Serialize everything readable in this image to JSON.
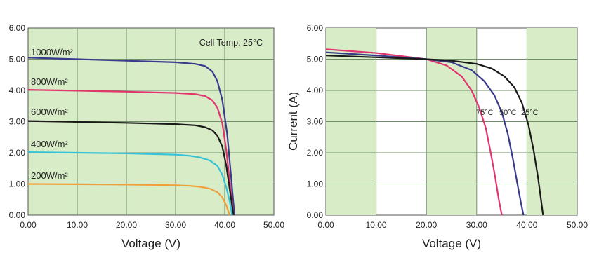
{
  "chart_data": [
    {
      "type": "line",
      "title": "",
      "xlabel": "Voltage (V)",
      "ylabel": "",
      "xlim": [
        0,
        50
      ],
      "ylim": [
        0,
        6
      ],
      "x_ticks": [
        "0.00",
        "10.00",
        "20.00",
        "30.00",
        "40.00",
        "50.00"
      ],
      "y_ticks": [
        "0.00",
        "1.00",
        "2.00",
        "3.00",
        "4.00",
        "5.00",
        "6.00"
      ],
      "annotation": "Cell Temp. 25°C",
      "grid": true,
      "series": [
        {
          "name": "1000W/m²",
          "color": "#3a3a8c",
          "x": [
            0,
            10,
            20,
            30,
            34,
            36,
            37.5,
            38.5,
            39.5,
            40.5,
            41.2,
            41.7,
            42
          ],
          "y": [
            5.05,
            5.0,
            4.95,
            4.9,
            4.85,
            4.78,
            4.6,
            4.3,
            3.7,
            2.6,
            1.4,
            0.5,
            0
          ]
        },
        {
          "name": "800W/m²",
          "color": "#e0356e",
          "x": [
            0,
            10,
            20,
            30,
            34,
            36,
            37.5,
            38.5,
            39.5,
            40.3,
            41.0,
            41.5,
            41.8
          ],
          "y": [
            4.02,
            3.99,
            3.96,
            3.92,
            3.88,
            3.82,
            3.68,
            3.45,
            2.95,
            2.1,
            1.1,
            0.4,
            0
          ]
        },
        {
          "name": "600W/m²",
          "color": "#1a1a1a",
          "x": [
            0,
            10,
            20,
            30,
            34,
            36,
            37.5,
            38.5,
            39.5,
            40.3,
            41.0,
            41.5,
            41.8
          ],
          "y": [
            3.02,
            2.99,
            2.96,
            2.92,
            2.88,
            2.82,
            2.72,
            2.55,
            2.2,
            1.6,
            0.85,
            0.3,
            0
          ]
        },
        {
          "name": "400W/m²",
          "color": "#35c2d6",
          "x": [
            0,
            10,
            20,
            30,
            33,
            35,
            37,
            38.5,
            39.5,
            40.3,
            41.0,
            41.5
          ],
          "y": [
            2.02,
            2.0,
            1.98,
            1.94,
            1.9,
            1.85,
            1.75,
            1.58,
            1.3,
            0.9,
            0.45,
            0
          ]
        },
        {
          "name": "200W/m²",
          "color": "#f0a03a",
          "x": [
            0,
            10,
            20,
            30,
            33,
            35,
            37,
            38.5,
            39.5,
            40.3,
            41.0
          ],
          "y": [
            1.0,
            0.99,
            0.98,
            0.96,
            0.94,
            0.91,
            0.85,
            0.74,
            0.57,
            0.32,
            0
          ]
        }
      ]
    },
    {
      "type": "line",
      "title": "",
      "xlabel": "Voltage (V)",
      "ylabel": "Current (A)",
      "xlim": [
        0,
        50
      ],
      "ylim": [
        0,
        6
      ],
      "x_ticks": [
        "0.00",
        "10.00",
        "20.00",
        "30.00",
        "40.00",
        "50.00"
      ],
      "y_ticks": [
        "0.00",
        "1.00",
        "2.00",
        "3.00",
        "4.00",
        "5.00",
        "6.00"
      ],
      "grid": true,
      "series": [
        {
          "name": "75°C",
          "color": "#e0356e",
          "x": [
            0,
            10,
            20,
            24,
            27,
            29,
            30.5,
            31.8,
            32.8,
            33.7,
            34.4,
            35
          ],
          "y": [
            5.32,
            5.2,
            5.0,
            4.8,
            4.45,
            4.0,
            3.45,
            2.8,
            2.0,
            1.2,
            0.5,
            0
          ]
        },
        {
          "name": "50°C",
          "color": "#3a3a8c",
          "x": [
            0,
            10,
            20,
            25,
            29,
            31.5,
            33.5,
            35,
            36.2,
            37.2,
            38.1,
            38.8,
            39.3
          ],
          "y": [
            5.22,
            5.12,
            5.0,
            4.9,
            4.65,
            4.3,
            3.85,
            3.3,
            2.6,
            1.8,
            1.0,
            0.4,
            0
          ]
        },
        {
          "name": "25°C",
          "color": "#1a1a1a",
          "x": [
            0,
            10,
            20,
            25,
            30,
            33,
            35.5,
            37.5,
            39,
            40.3,
            41.3,
            42.2,
            42.8,
            43.2
          ],
          "y": [
            5.12,
            5.06,
            5.0,
            4.95,
            4.85,
            4.7,
            4.45,
            4.1,
            3.6,
            2.9,
            2.1,
            1.2,
            0.5,
            0
          ]
        }
      ]
    }
  ],
  "left_labels": {
    "s0": "1000W/m²",
    "s1": "800W/m²",
    "s2": "600W/m²",
    "s3": "400W/m²",
    "s4": "200W/m²"
  },
  "right_labels": {
    "t75": "75°C",
    "t50": "50°C",
    "t25": "25°C"
  }
}
